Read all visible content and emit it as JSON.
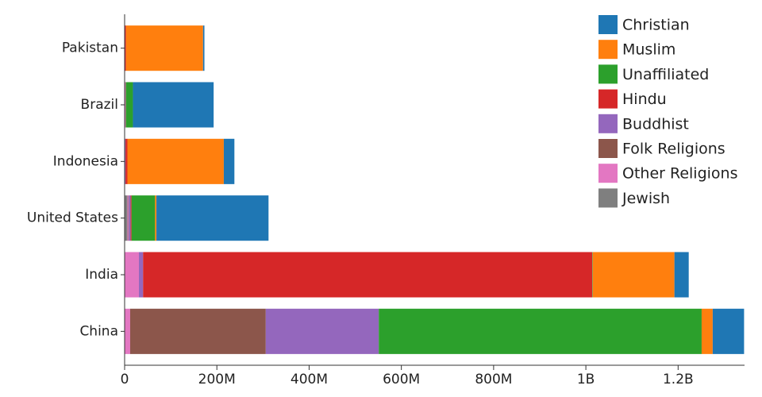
{
  "chart_data": {
    "type": "stacked-bar-horizontal",
    "categories": [
      "Pakistan",
      "Brazil",
      "Indonesia",
      "United States",
      "India",
      "China"
    ],
    "series": [
      {
        "name": "Christian",
        "color": "#1f77b4",
        "values": [
          3000000,
          175000000,
          23000000,
          243000000,
          31000000,
          68000000
        ]
      },
      {
        "name": "Muslim",
        "color": "#ff7f0e",
        "values": [
          167000000,
          0,
          209000000,
          3000000,
          177000000,
          24000000
        ]
      },
      {
        "name": "Unaffiliated",
        "color": "#2ca02c",
        "values": [
          0,
          15000000,
          0,
          51000000,
          1000000,
          700000000
        ]
      },
      {
        "name": "Hindu",
        "color": "#d62728",
        "values": [
          3000000,
          0,
          4000000,
          2000000,
          974000000,
          0
        ]
      },
      {
        "name": "Buddhist",
        "color": "#9467bd",
        "values": [
          0,
          0,
          2000000,
          4000000,
          9000000,
          245000000
        ]
      },
      {
        "name": "Folk Religions",
        "color": "#8c564b",
        "values": [
          0,
          1000000,
          0,
          1000000,
          0,
          294000000
        ]
      },
      {
        "name": "Other Religions",
        "color": "#e377c2",
        "values": [
          0,
          2000000,
          0,
          2000000,
          31000000,
          12000000
        ]
      },
      {
        "name": "Jewish",
        "color": "#7f7f7f",
        "values": [
          0,
          0,
          0,
          6000000,
          0,
          0
        ]
      }
    ],
    "xlim": [
      0,
      1344000000
    ],
    "xticks": [
      0,
      {
        "value": 200000000,
        "label": "200M"
      },
      {
        "value": 400000000,
        "label": "400M"
      },
      {
        "value": 600000000,
        "label": "600M"
      },
      {
        "value": 800000000,
        "label": "800M"
      },
      {
        "value": 1000000000,
        "label": "1B"
      },
      {
        "value": 1200000000,
        "label": "1.2B"
      }
    ],
    "legend": "top-right"
  }
}
